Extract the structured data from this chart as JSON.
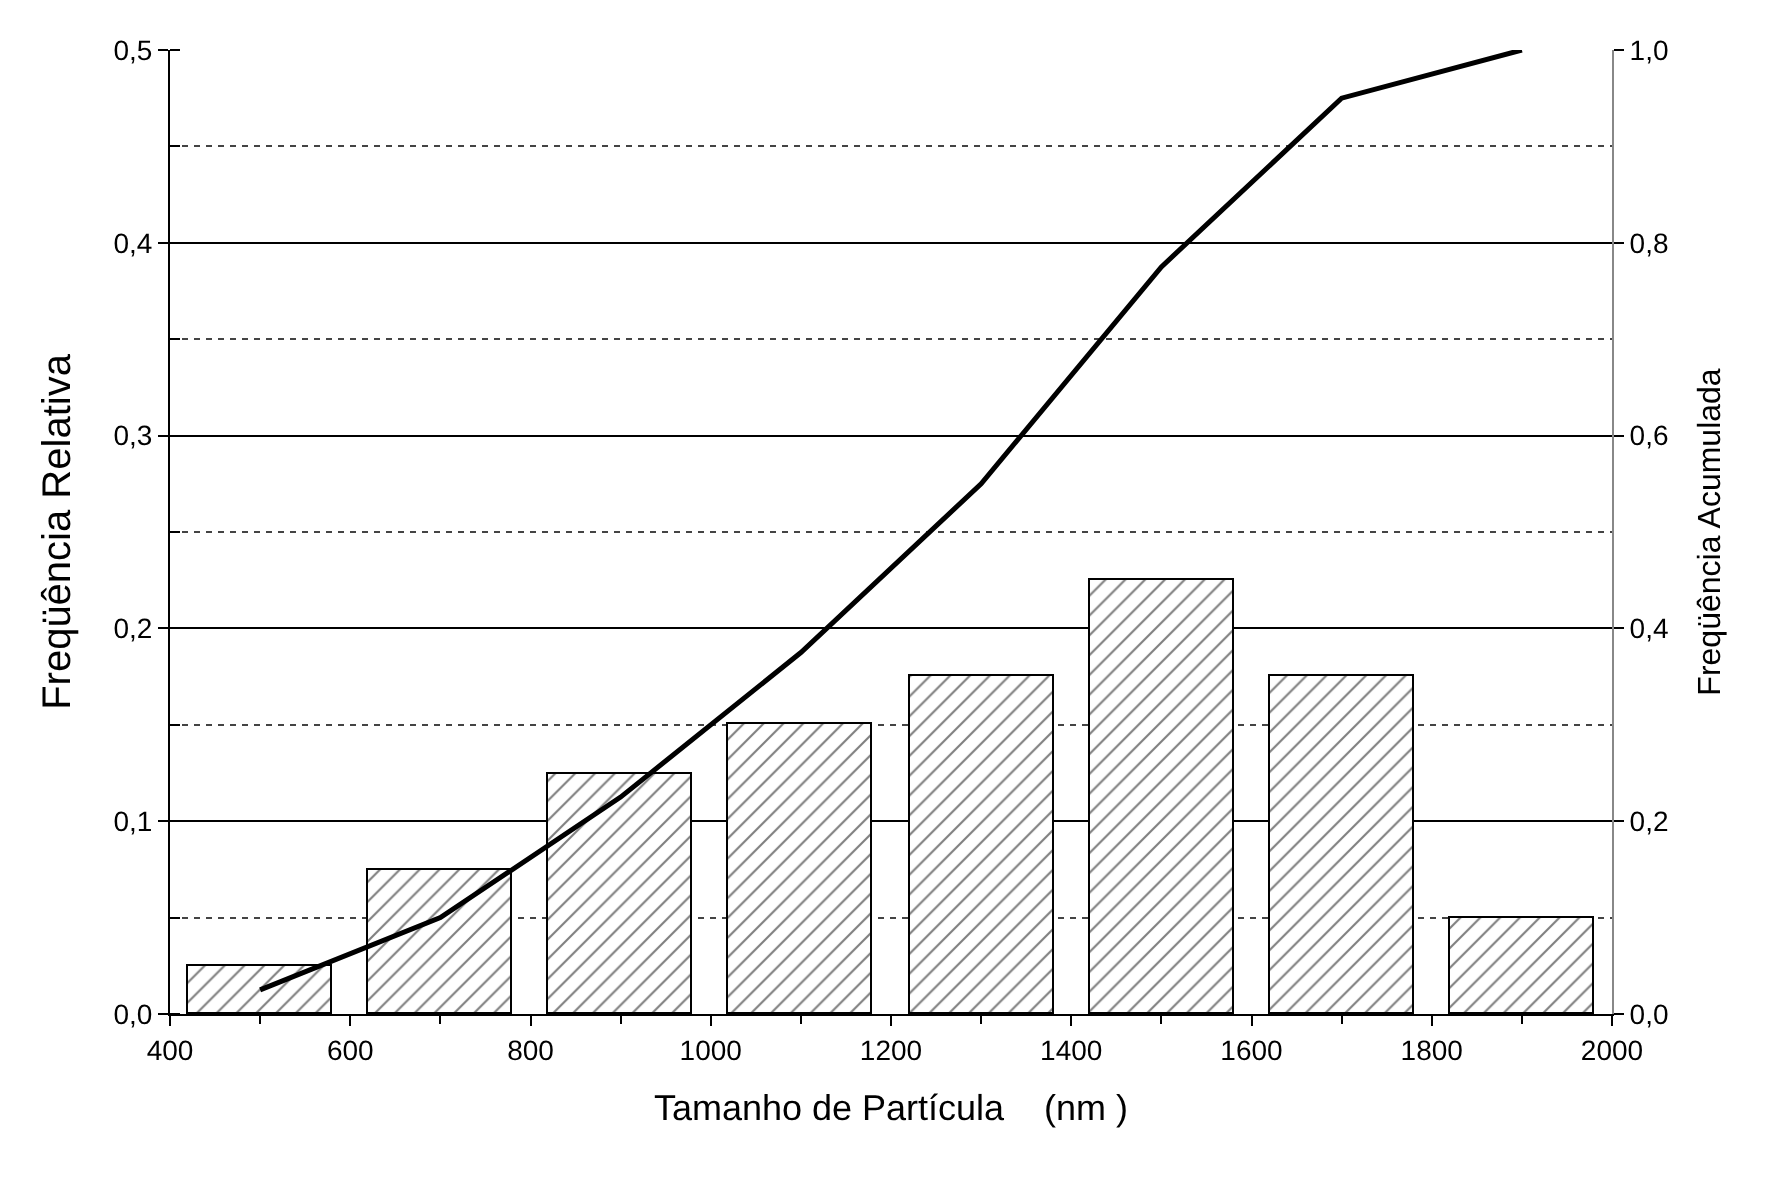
{
  "chart_data": {
    "type": "bar",
    "xlabel": "Tamanho de Partícula    (nm )",
    "ylabel": "Freqüência Relativa",
    "y2label": "Freqüência Acumulada",
    "x": [
      500,
      700,
      900,
      1100,
      1300,
      1500,
      1700,
      1900
    ],
    "series": [
      {
        "color": "#000000",
        "values": [
          0.025,
          0.075,
          0.125,
          0.15,
          0.175,
          0.225,
          0.175,
          0.05
        ]
      },
      {
        "type": "line",
        "axis": "y2",
        "color": "#000000",
        "values": [
          0.025,
          0.1,
          0.225,
          0.375,
          0.55,
          0.775,
          0.95,
          1.0
        ]
      }
    ],
    "xlim": [
      400,
      2000
    ],
    "xticks": [
      400,
      600,
      800,
      1000,
      1200,
      1400,
      1600,
      1800,
      2000
    ],
    "ylim": [
      0,
      0.5
    ],
    "yticks": [
      {
        "value": 0,
        "label": "0,0"
      },
      {
        "value": 0.1,
        "label": "0,1"
      },
      {
        "value": 0.2,
        "label": "0,2"
      },
      {
        "value": 0.3,
        "label": "0,3"
      },
      {
        "value": 0.4,
        "label": "0,4"
      },
      {
        "value": 0.5,
        "label": "0,5"
      }
    ],
    "y2lim": [
      0,
      1
    ],
    "y2ticks": [
      {
        "value": 0,
        "label": "0,0"
      },
      {
        "value": 0.2,
        "label": "0,2"
      },
      {
        "value": 0.4,
        "label": "0,4"
      },
      {
        "value": 0.6,
        "label": "0,6"
      },
      {
        "value": 0.8,
        "label": "0,8"
      },
      {
        "value": 1.0,
        "label": "1,0"
      }
    ],
    "grid": "y",
    "marker": "none",
    "line_style": "solid"
  }
}
